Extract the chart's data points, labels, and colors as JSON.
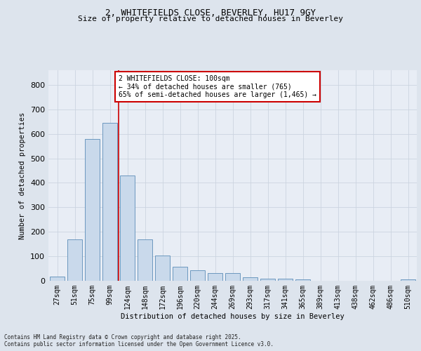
{
  "title_line1": "2, WHITEFIELDS CLOSE, BEVERLEY, HU17 9GY",
  "title_line2": "Size of property relative to detached houses in Beverley",
  "xlabel": "Distribution of detached houses by size in Beverley",
  "ylabel": "Number of detached properties",
  "categories": [
    "27sqm",
    "51sqm",
    "75sqm",
    "99sqm",
    "124sqm",
    "148sqm",
    "172sqm",
    "196sqm",
    "220sqm",
    "244sqm",
    "269sqm",
    "293sqm",
    "317sqm",
    "341sqm",
    "365sqm",
    "389sqm",
    "413sqm",
    "438sqm",
    "462sqm",
    "486sqm",
    "510sqm"
  ],
  "values": [
    18,
    168,
    580,
    645,
    430,
    170,
    103,
    57,
    44,
    32,
    32,
    13,
    8,
    8,
    5,
    0,
    0,
    0,
    0,
    0,
    6
  ],
  "bar_color": "#c9d9eb",
  "bar_edge_color": "#5b8db8",
  "grid_color": "#ccd4e0",
  "vline_x": 3.5,
  "vline_color": "#cc0000",
  "annotation_text": "2 WHITEFIELDS CLOSE: 100sqm\n← 34% of detached houses are smaller (765)\n65% of semi-detached houses are larger (1,465) →",
  "annotation_box_color": "#ffffff",
  "annotation_edge_color": "#cc0000",
  "ylim": [
    0,
    860
  ],
  "yticks": [
    0,
    100,
    200,
    300,
    400,
    500,
    600,
    700,
    800
  ],
  "footnote": "Contains HM Land Registry data © Crown copyright and database right 2025.\nContains public sector information licensed under the Open Government Licence v3.0.",
  "background_color": "#dde4ed",
  "plot_background_color": "#e8edf5"
}
